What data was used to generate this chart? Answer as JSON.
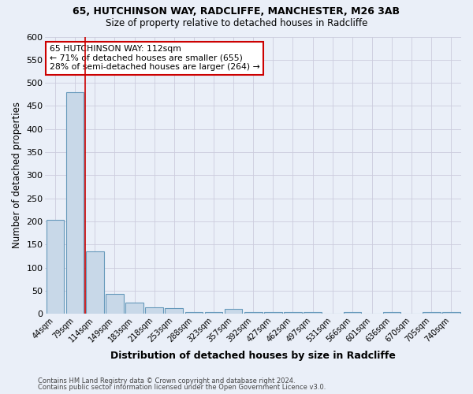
{
  "title1": "65, HUTCHINSON WAY, RADCLIFFE, MANCHESTER, M26 3AB",
  "title2": "Size of property relative to detached houses in Radcliffe",
  "xlabel": "Distribution of detached houses by size in Radcliffe",
  "ylabel": "Number of detached properties",
  "footer1": "Contains HM Land Registry data © Crown copyright and database right 2024.",
  "footer2": "Contains public sector information licensed under the Open Government Licence v3.0.",
  "bin_labels": [
    "44sqm",
    "79sqm",
    "114sqm",
    "149sqm",
    "183sqm",
    "218sqm",
    "253sqm",
    "288sqm",
    "323sqm",
    "357sqm",
    "392sqm",
    "427sqm",
    "462sqm",
    "497sqm",
    "531sqm",
    "566sqm",
    "601sqm",
    "636sqm",
    "670sqm",
    "705sqm",
    "740sqm"
  ],
  "bar_values": [
    203,
    480,
    135,
    43,
    24,
    15,
    13,
    5,
    5,
    11,
    5,
    4,
    5,
    4,
    0,
    5,
    0,
    4,
    0,
    5,
    5
  ],
  "bar_color": "#c8d8e8",
  "bar_edge_color": "#6699bb",
  "bg_color": "#eaeff8",
  "grid_color": "#ccccdd",
  "vline_color": "#cc0000",
  "annotation_text": "65 HUTCHINSON WAY: 112sqm\n← 71% of detached houses are smaller (655)\n28% of semi-detached houses are larger (264) →",
  "annotation_box_color": "#ffffff",
  "annotation_box_edge": "#cc0000",
  "ylim": [
    0,
    600
  ],
  "yticks": [
    0,
    50,
    100,
    150,
    200,
    250,
    300,
    350,
    400,
    450,
    500,
    550,
    600
  ]
}
